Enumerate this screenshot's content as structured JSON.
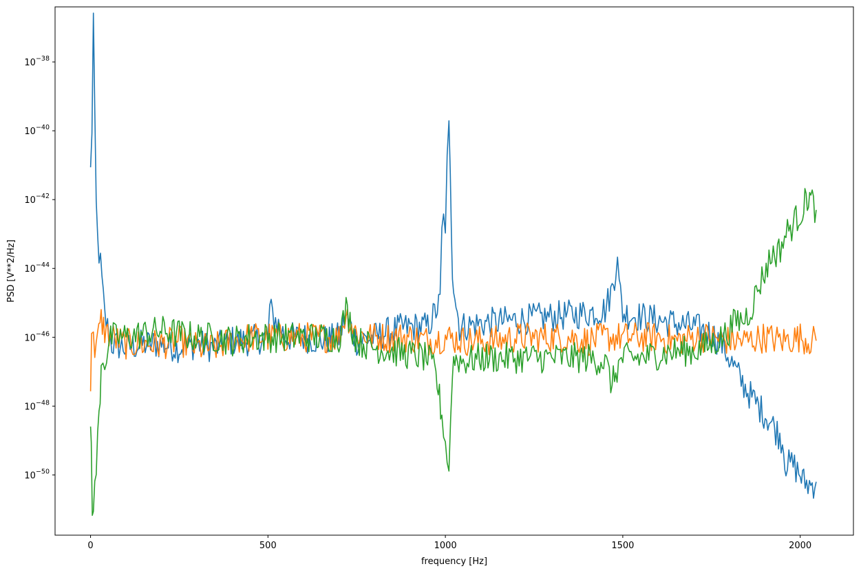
{
  "chart_data": {
    "type": "line",
    "title": "",
    "xlabel": "frequency [Hz]",
    "ylabel": "PSD [V**2/Hz]",
    "yscale": "log",
    "xlim": [
      -100,
      2150
    ],
    "ylim_exponent": [
      -51.75,
      -36.4
    ],
    "x_ticks": [
      {
        "value": 0,
        "label": "0"
      },
      {
        "value": 500,
        "label": "500"
      },
      {
        "value": 1000,
        "label": "1000"
      },
      {
        "value": 1500,
        "label": "1500"
      },
      {
        "value": 2000,
        "label": "2000"
      }
    ],
    "y_ticks": [
      {
        "exponent": -38,
        "base": "10",
        "sup": "−38"
      },
      {
        "exponent": -40,
        "base": "10",
        "sup": "−40"
      },
      {
        "exponent": -42,
        "base": "10",
        "sup": "−42"
      },
      {
        "exponent": -44,
        "base": "10",
        "sup": "−44"
      },
      {
        "exponent": -46,
        "base": "10",
        "sup": "−46"
      },
      {
        "exponent": -48,
        "base": "10",
        "sup": "−48"
      },
      {
        "exponent": -50,
        "base": "10",
        "sup": "−50"
      }
    ],
    "grid": false,
    "legend": "none",
    "series": [
      {
        "color": "#1f77b4",
        "points": [
          [
            0,
            -41.2
          ],
          [
            4,
            -39.9
          ],
          [
            8,
            -36.7
          ],
          [
            12,
            -39.8
          ],
          [
            16,
            -42.2
          ],
          [
            20,
            -43.2
          ],
          [
            28,
            -43.9
          ],
          [
            40,
            -45.4
          ],
          [
            60,
            -46.2
          ],
          [
            100,
            -46.3
          ],
          [
            150,
            -46.2
          ],
          [
            200,
            -46.2
          ],
          [
            250,
            -46.3
          ],
          [
            300,
            -46.2
          ],
          [
            350,
            -46.3
          ],
          [
            400,
            -46.1
          ],
          [
            450,
            -46.1
          ],
          [
            500,
            -46.0
          ],
          [
            505,
            -45.2
          ],
          [
            550,
            -46.0
          ],
          [
            600,
            -46.0
          ],
          [
            650,
            -46.1
          ],
          [
            700,
            -46.0
          ],
          [
            720,
            -45.4
          ],
          [
            750,
            -46.1
          ],
          [
            800,
            -46.0
          ],
          [
            850,
            -45.8
          ],
          [
            900,
            -45.7
          ],
          [
            950,
            -45.7
          ],
          [
            985,
            -45.0
          ],
          [
            990,
            -43.0
          ],
          [
            995,
            -42.6
          ],
          [
            1000,
            -42.7
          ],
          [
            1005,
            -41.0
          ],
          [
            1010,
            -40.0
          ],
          [
            1014,
            -41.5
          ],
          [
            1020,
            -44.0
          ],
          [
            1030,
            -45.0
          ],
          [
            1040,
            -45.7
          ],
          [
            1100,
            -45.6
          ],
          [
            1200,
            -45.5
          ],
          [
            1300,
            -45.4
          ],
          [
            1400,
            -45.3
          ],
          [
            1450,
            -45.2
          ],
          [
            1470,
            -44.6
          ],
          [
            1480,
            -44.0
          ],
          [
            1485,
            -43.4
          ],
          [
            1490,
            -44.5
          ],
          [
            1500,
            -45.3
          ],
          [
            1550,
            -45.4
          ],
          [
            1600,
            -45.5
          ],
          [
            1650,
            -45.6
          ],
          [
            1700,
            -45.7
          ],
          [
            1750,
            -45.9
          ],
          [
            1780,
            -46.2
          ],
          [
            1800,
            -46.6
          ],
          [
            1830,
            -47.2
          ],
          [
            1860,
            -47.7
          ],
          [
            1890,
            -48.1
          ],
          [
            1920,
            -48.5
          ],
          [
            1950,
            -49.0
          ],
          [
            1960,
            -49.7
          ],
          [
            1980,
            -49.7
          ],
          [
            2000,
            -50.0
          ],
          [
            2010,
            -50.2
          ],
          [
            2030,
            -50.3
          ],
          [
            2045,
            -50.2
          ]
        ]
      },
      {
        "color": "#ff7f0e",
        "points": [
          [
            0,
            -47.4
          ],
          [
            3,
            -46.2
          ],
          [
            8,
            -45.6
          ],
          [
            12,
            -46.3
          ],
          [
            20,
            -46.1
          ],
          [
            30,
            -45.5
          ],
          [
            40,
            -45.8
          ],
          [
            60,
            -46.0
          ],
          [
            100,
            -46.2
          ],
          [
            150,
            -46.2
          ],
          [
            200,
            -46.2
          ],
          [
            250,
            -46.1
          ],
          [
            300,
            -46.3
          ],
          [
            350,
            -46.3
          ],
          [
            400,
            -46.1
          ],
          [
            450,
            -46.0
          ],
          [
            500,
            -46.0
          ],
          [
            550,
            -46.0
          ],
          [
            600,
            -46.0
          ],
          [
            650,
            -46.0
          ],
          [
            700,
            -46.0
          ],
          [
            720,
            -45.3
          ],
          [
            750,
            -45.9
          ],
          [
            800,
            -46.0
          ],
          [
            850,
            -46.0
          ],
          [
            900,
            -46.0
          ],
          [
            950,
            -46.1
          ],
          [
            1000,
            -46.0
          ],
          [
            1050,
            -46.1
          ],
          [
            1100,
            -46.1
          ],
          [
            1150,
            -46.1
          ],
          [
            1200,
            -46.0
          ],
          [
            1250,
            -46.0
          ],
          [
            1300,
            -46.0
          ],
          [
            1350,
            -46.0
          ],
          [
            1400,
            -46.1
          ],
          [
            1450,
            -46.0
          ],
          [
            1500,
            -46.0
          ],
          [
            1550,
            -46.0
          ],
          [
            1600,
            -46.0
          ],
          [
            1650,
            -46.1
          ],
          [
            1700,
            -46.0
          ],
          [
            1750,
            -46.0
          ],
          [
            1800,
            -46.1
          ],
          [
            1850,
            -46.1
          ],
          [
            1900,
            -46.0
          ],
          [
            1950,
            -46.1
          ],
          [
            2000,
            -46.0
          ],
          [
            2030,
            -46.1
          ],
          [
            2045,
            -46.1
          ]
        ]
      },
      {
        "color": "#2ca02c",
        "points": [
          [
            0,
            -48.4
          ],
          [
            2,
            -49.2
          ],
          [
            5,
            -50.8
          ],
          [
            8,
            -51.1
          ],
          [
            12,
            -50.5
          ],
          [
            16,
            -49.8
          ],
          [
            20,
            -49.0
          ],
          [
            24,
            -48.3
          ],
          [
            30,
            -46.8
          ],
          [
            35,
            -46.5
          ],
          [
            40,
            -46.7
          ],
          [
            45,
            -46.5
          ],
          [
            50,
            -46.2
          ],
          [
            60,
            -46.0
          ],
          [
            100,
            -46.0
          ],
          [
            150,
            -45.9
          ],
          [
            200,
            -45.8
          ],
          [
            250,
            -45.9
          ],
          [
            300,
            -46.0
          ],
          [
            350,
            -46.0
          ],
          [
            400,
            -46.1
          ],
          [
            450,
            -46.0
          ],
          [
            500,
            -46.0
          ],
          [
            550,
            -46.0
          ],
          [
            600,
            -46.0
          ],
          [
            650,
            -46.0
          ],
          [
            700,
            -46.0
          ],
          [
            720,
            -45.2
          ],
          [
            750,
            -46.1
          ],
          [
            800,
            -46.3
          ],
          [
            850,
            -46.4
          ],
          [
            900,
            -46.5
          ],
          [
            950,
            -46.6
          ],
          [
            970,
            -47.0
          ],
          [
            980,
            -47.5
          ],
          [
            990,
            -48.3
          ],
          [
            995,
            -48.6
          ],
          [
            1000,
            -49.0
          ],
          [
            1005,
            -49.6
          ],
          [
            1010,
            -49.7
          ],
          [
            1015,
            -48.5
          ],
          [
            1020,
            -46.8
          ],
          [
            1030,
            -46.6
          ],
          [
            1050,
            -46.7
          ],
          [
            1100,
            -46.6
          ],
          [
            1200,
            -46.6
          ],
          [
            1300,
            -46.6
          ],
          [
            1400,
            -46.6
          ],
          [
            1450,
            -46.7
          ],
          [
            1470,
            -47.4
          ],
          [
            1480,
            -47.0
          ],
          [
            1500,
            -46.6
          ],
          [
            1550,
            -46.6
          ],
          [
            1600,
            -46.5
          ],
          [
            1650,
            -46.4
          ],
          [
            1700,
            -46.4
          ],
          [
            1750,
            -46.2
          ],
          [
            1780,
            -46.0
          ],
          [
            1800,
            -45.8
          ],
          [
            1820,
            -45.5
          ],
          [
            1840,
            -45.5
          ],
          [
            1860,
            -45.2
          ],
          [
            1880,
            -44.6
          ],
          [
            1900,
            -44.1
          ],
          [
            1920,
            -43.6
          ],
          [
            1940,
            -43.5
          ],
          [
            1960,
            -43.0
          ],
          [
            1980,
            -42.7
          ],
          [
            2000,
            -42.4
          ],
          [
            2010,
            -42.2
          ],
          [
            2020,
            -41.9
          ],
          [
            2030,
            -42.0
          ],
          [
            2045,
            -42.3
          ]
        ]
      }
    ]
  }
}
